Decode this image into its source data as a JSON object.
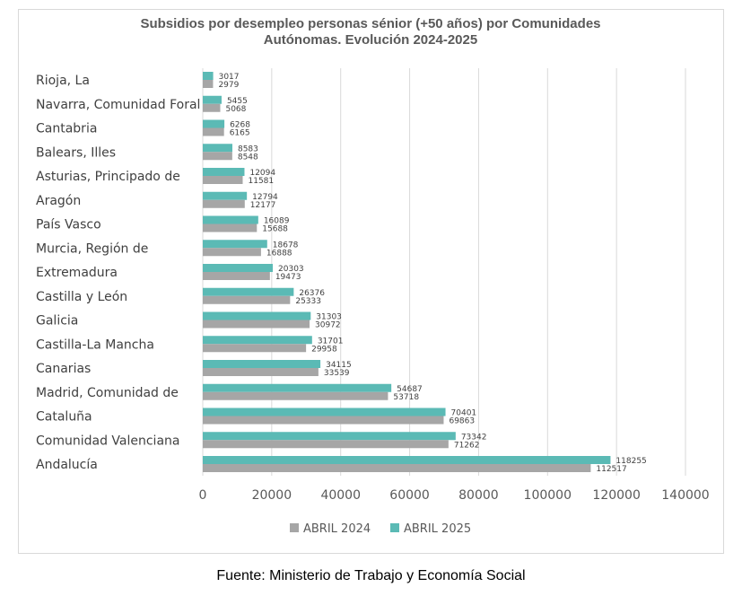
{
  "chart_data": {
    "type": "bar",
    "orientation": "horizontal",
    "title": "Subsidios por desempleo personas sénior (+50 años) por Comunidades Autónomas. Evolución 2024-2025",
    "title_lines": [
      "Subsidios por desempleo personas sénior (+50 años) por Comunidades",
      "Autónomas. Evolución 2024-2025"
    ],
    "categories": [
      "Rioja, La",
      "Navarra, Comunidad Foral",
      "Cantabria",
      "Balears, Illes",
      "Asturias, Principado de",
      "Aragón",
      "País Vasco",
      "Murcia, Región de",
      "Extremadura",
      "Castilla y León",
      "Galicia",
      "Castilla-La Mancha",
      "Canarias",
      "Madrid, Comunidad de",
      "Cataluña",
      "Comunidad Valenciana",
      "Andalucía"
    ],
    "series": [
      {
        "name": "ABRIL 2024",
        "color": "#a6a6a6",
        "values": [
          2979,
          5068,
          6165,
          8548,
          11581,
          12177,
          15688,
          16888,
          19473,
          25333,
          30972,
          29958,
          33539,
          53718,
          69863,
          71262,
          112517
        ]
      },
      {
        "name": "ABRIL 2025",
        "color": "#5bbab5",
        "values": [
          3017,
          5455,
          6268,
          8583,
          12094,
          12794,
          16089,
          18678,
          20303,
          26376,
          31303,
          31701,
          34115,
          54687,
          70401,
          73342,
          118255
        ]
      }
    ],
    "xlim": [
      0,
      140000
    ],
    "xticks": [
      0,
      20000,
      40000,
      60000,
      80000,
      100000,
      120000,
      140000
    ],
    "grid": true,
    "data_labels": true,
    "legend_position": "bottom",
    "xlabel": "",
    "ylabel": ""
  },
  "source": "Fuente: Ministerio de Trabajo y Economía Social"
}
